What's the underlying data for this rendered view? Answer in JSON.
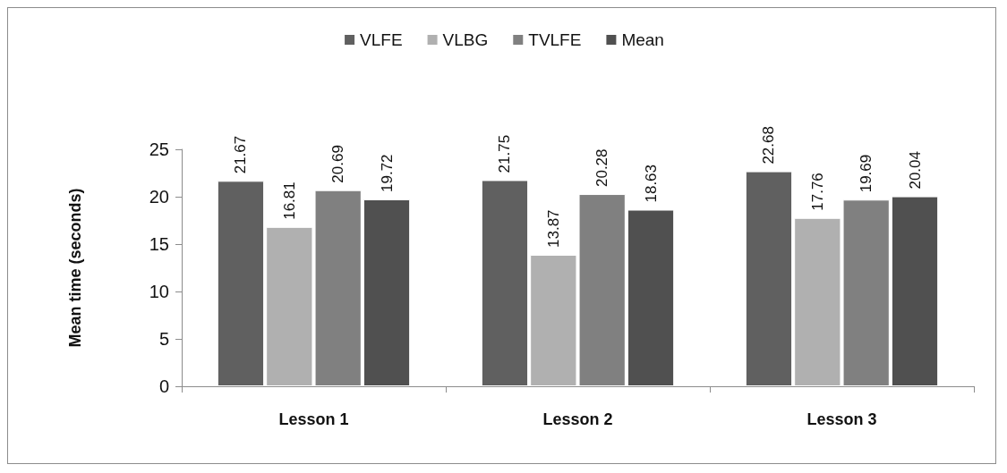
{
  "chart_data": {
    "type": "bar",
    "ylabel": "Mean time (seconds)",
    "categories": [
      "Lesson 1",
      "Lesson 2",
      "Lesson 3"
    ],
    "series": [
      {
        "name": "VLFE",
        "color": "#606060",
        "values": [
          21.67,
          21.75,
          22.68
        ]
      },
      {
        "name": "VLBG",
        "color": "#b0b0b0",
        "values": [
          16.81,
          13.87,
          17.76
        ]
      },
      {
        "name": "TVLFE",
        "color": "#808080",
        "values": [
          20.69,
          20.28,
          19.69
        ]
      },
      {
        "name": "Mean",
        "color": "#505050",
        "values": [
          19.72,
          18.63,
          20.04
        ]
      }
    ],
    "ylim": [
      0,
      25
    ],
    "yticks": [
      0,
      5,
      10,
      15,
      20,
      25
    ],
    "grid": false,
    "legend": "top",
    "data_labels": true
  }
}
